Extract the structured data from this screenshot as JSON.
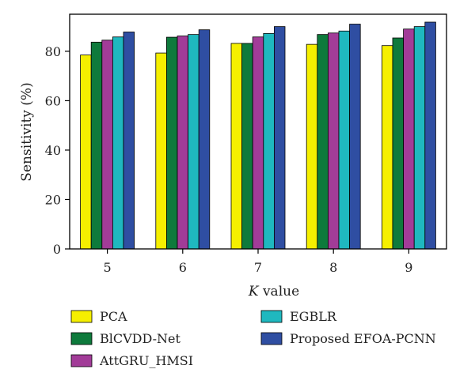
{
  "chart_data": {
    "type": "bar",
    "xlabel_italic": "K",
    "xlabel_rest": " value",
    "ylabel": "Sensitivity (%)",
    "categories": [
      "5",
      "6",
      "7",
      "8",
      "9"
    ],
    "ylim": [
      0,
      95
    ],
    "yticks": [
      0,
      20,
      40,
      60,
      80
    ],
    "grid": false,
    "legend_position": "bottom",
    "series": [
      {
        "name": "PCA",
        "color": "#f5ef00",
        "values": [
          78.5,
          79.3,
          83.2,
          82.8,
          82.3
        ]
      },
      {
        "name": "BlCVDD-Net",
        "color": "#0e7a3c",
        "values": [
          83.7,
          85.7,
          83.2,
          86.8,
          85.4
        ]
      },
      {
        "name": "AttGRU_HMSI",
        "color": "#a23c98",
        "values": [
          84.5,
          86.2,
          85.8,
          87.4,
          89.0
        ]
      },
      {
        "name": "EGBLR",
        "color": "#1fb8bf",
        "values": [
          85.8,
          86.8,
          87.2,
          88.2,
          90.0
        ]
      },
      {
        "name": "Proposed EFOA-PCNN",
        "color": "#2f4ea2",
        "values": [
          87.8,
          88.7,
          90.0,
          91.0,
          91.8
        ]
      }
    ]
  }
}
